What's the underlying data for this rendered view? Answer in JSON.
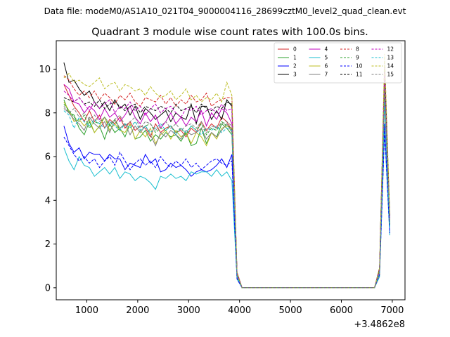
{
  "suptitle": "Data file: modeM0/AS1A10_021T04_9000004116_28699cztM0_level2_quad_clean.evt",
  "chart_data": {
    "type": "line",
    "title": "Quadrant 3 module wise count rates with 100.0s bins.",
    "xlabel": "",
    "ylabel": "",
    "x_offset_label": "+3.4862e8",
    "xlim": [
      400,
      7250
    ],
    "ylim": [
      -0.55,
      11.3
    ],
    "xticks": [
      1000,
      2000,
      3000,
      4000,
      5000,
      6000,
      7000
    ],
    "yticks": [
      0,
      2,
      4,
      6,
      8,
      10
    ],
    "grid": false,
    "legend": {
      "placement": "top-right",
      "columns": 4
    },
    "x": [
      550,
      650,
      750,
      850,
      950,
      1050,
      1150,
      1250,
      1350,
      1450,
      1550,
      1650,
      1750,
      1850,
      1950,
      2050,
      2150,
      2250,
      2350,
      2450,
      2550,
      2650,
      2750,
      2850,
      2950,
      3050,
      3150,
      3250,
      3350,
      3450,
      3550,
      3650,
      3750,
      3850,
      3950,
      4050,
      4150,
      4250,
      4350,
      4450,
      4550,
      4650,
      4750,
      4850,
      4950,
      5050,
      5150,
      5250,
      5350,
      5450,
      5550,
      5650,
      5750,
      5850,
      5950,
      6050,
      6150,
      6250,
      6350,
      6450,
      6550,
      6650,
      6750,
      6850,
      6950
    ],
    "series": [
      {
        "name": "0",
        "color": "#d62728",
        "dash": false,
        "values": [
          9.3,
          8.8,
          8.3,
          8.0,
          7.6,
          8.1,
          7.6,
          7.9,
          7.3,
          7.7,
          7.5,
          7.8,
          7.3,
          7.6,
          7.2,
          7.4,
          7.3,
          6.9,
          7.5,
          7.1,
          7.3,
          7.4,
          7.1,
          7.2,
          6.9,
          7.3,
          7.1,
          7.6,
          7.2,
          7.5,
          7.3,
          7.8,
          7.6,
          7.2,
          0.6,
          0,
          0,
          0,
          0,
          0,
          0,
          0,
          0,
          0,
          0,
          0,
          0,
          0,
          0,
          0,
          0,
          0,
          0,
          0,
          0,
          0,
          0,
          0,
          0,
          0,
          0,
          0,
          0.8,
          9.5,
          3.1
        ]
      },
      {
        "name": "1",
        "color": "#2ca02c",
        "dash": false,
        "values": [
          8.6,
          8.0,
          7.9,
          7.3,
          7.0,
          7.6,
          7.1,
          7.4,
          6.8,
          7.5,
          7.1,
          7.3,
          6.9,
          7.5,
          6.8,
          6.9,
          7.2,
          6.7,
          7.0,
          6.8,
          7.1,
          6.9,
          7.0,
          6.7,
          7.1,
          6.5,
          6.6,
          7.3,
          6.6,
          7.1,
          6.9,
          7.5,
          7.3,
          7.0,
          0.5,
          0,
          0,
          0,
          0,
          0,
          0,
          0,
          0,
          0,
          0,
          0,
          0,
          0,
          0,
          0,
          0,
          0,
          0,
          0,
          0,
          0,
          0,
          0,
          0,
          0,
          0,
          0,
          0.7,
          8.8,
          2.9
        ]
      },
      {
        "name": "2",
        "color": "#0000ff",
        "dash": false,
        "values": [
          7.4,
          6.6,
          6.2,
          6.4,
          5.9,
          6.2,
          6.1,
          6.1,
          5.8,
          6.1,
          5.9,
          5.9,
          5.4,
          5.7,
          5.6,
          5.5,
          6.1,
          5.7,
          5.9,
          5.3,
          5.4,
          5.7,
          5.5,
          5.6,
          5.4,
          5.1,
          5.3,
          5.4,
          5.3,
          5.4,
          5.6,
          5.9,
          5.5,
          6.1,
          0.4,
          0,
          0,
          0,
          0,
          0,
          0,
          0,
          0,
          0,
          0,
          0,
          0,
          0,
          0,
          0,
          0,
          0,
          0,
          0,
          0,
          0,
          0,
          0,
          0,
          0,
          0,
          0,
          0.6,
          7.5,
          2.5
        ]
      },
      {
        "name": "3",
        "color": "#000000",
        "dash": false,
        "values": [
          10.3,
          9.4,
          9.5,
          9.1,
          8.8,
          9.0,
          8.5,
          8.2,
          8.5,
          8.1,
          8.6,
          8.2,
          8.4,
          7.9,
          8.3,
          7.7,
          8.2,
          8.0,
          7.7,
          7.9,
          8.1,
          7.6,
          8.0,
          7.8,
          7.7,
          8.4,
          7.5,
          8.3,
          8.3,
          7.7,
          8.1,
          7.7,
          8.6,
          8.3,
          0.7,
          0,
          0,
          0,
          0,
          0,
          0,
          0,
          0,
          0,
          0,
          0,
          0,
          0,
          0,
          0,
          0,
          0,
          0,
          0,
          0,
          0,
          0,
          0,
          0,
          0,
          0,
          0,
          0.9,
          10.0,
          3.3
        ]
      },
      {
        "name": "4",
        "color": "#c000c0",
        "dash": false,
        "values": [
          9.3,
          9.1,
          8.5,
          8.4,
          8.0,
          8.3,
          8.1,
          7.7,
          8.2,
          7.8,
          8.0,
          7.6,
          7.9,
          8.3,
          7.8,
          7.5,
          8.0,
          7.6,
          7.9,
          7.3,
          7.6,
          8.0,
          7.5,
          7.8,
          7.4,
          7.8,
          7.6,
          8.1,
          7.4,
          8.0,
          7.7,
          8.2,
          8.0,
          7.5,
          0.7,
          0,
          0,
          0,
          0,
          0,
          0,
          0,
          0,
          0,
          0,
          0,
          0,
          0,
          0,
          0,
          0,
          0,
          0,
          0,
          0,
          0,
          0,
          0,
          0,
          0,
          0,
          0,
          0.8,
          9.7,
          3.2
        ]
      },
      {
        "name": "5",
        "color": "#17becf",
        "dash": false,
        "values": [
          6.4,
          5.8,
          5.4,
          6.0,
          5.6,
          5.5,
          5.1,
          5.3,
          5.5,
          5.2,
          5.5,
          5.0,
          5.3,
          5.2,
          4.9,
          5.1,
          5.0,
          4.8,
          4.5,
          5.1,
          5.0,
          5.2,
          5.0,
          5.1,
          4.9,
          5.3,
          5.2,
          5.3,
          5.3,
          5.1,
          5.4,
          5.1,
          5.3,
          4.9,
          0.4,
          0,
          0,
          0,
          0,
          0,
          0,
          0,
          0,
          0,
          0,
          0,
          0,
          0,
          0,
          0,
          0,
          0,
          0,
          0,
          0,
          0,
          0,
          0,
          0,
          0,
          0,
          0,
          0.5,
          7.2,
          2.4
        ]
      },
      {
        "name": "6",
        "color": "#bcbd22",
        "dash": false,
        "values": [
          8.5,
          8.1,
          7.6,
          7.7,
          7.4,
          7.7,
          7.1,
          7.4,
          7.8,
          7.2,
          7.5,
          7.2,
          7.1,
          7.5,
          6.8,
          7.2,
          6.9,
          7.3,
          6.6,
          7.0,
          7.2,
          6.8,
          7.2,
          6.9,
          7.1,
          6.6,
          7.1,
          6.9,
          6.5,
          7.1,
          6.8,
          7.3,
          7.4,
          7.3,
          0.5,
          0,
          0,
          0,
          0,
          0,
          0,
          0,
          0,
          0,
          0,
          0,
          0,
          0,
          0,
          0,
          0,
          0,
          0,
          0,
          0,
          0,
          0,
          0,
          0,
          0,
          0,
          0,
          0.6,
          9.6,
          3.0
        ]
      },
      {
        "name": "7",
        "color": "#7f7f7f",
        "dash": false,
        "values": [
          8.2,
          8.0,
          7.7,
          7.5,
          7.2,
          7.8,
          7.5,
          7.3,
          7.6,
          7.1,
          7.7,
          7.3,
          7.5,
          7.0,
          7.4,
          7.1,
          7.4,
          7.0,
          6.5,
          7.1,
          6.9,
          7.2,
          7.0,
          6.8,
          7.2,
          7.0,
          7.1,
          7.3,
          6.8,
          7.1,
          6.9,
          7.2,
          7.5,
          7.1,
          0.5,
          0,
          0,
          0,
          0,
          0,
          0,
          0,
          0,
          0,
          0,
          0,
          0,
          0,
          0,
          0,
          0,
          0,
          0,
          0,
          0,
          0,
          0,
          0,
          0,
          0,
          0,
          0,
          0.6,
          8.5,
          2.9
        ]
      },
      {
        "name": "8",
        "color": "#d62728",
        "dash": true,
        "values": [
          9.7,
          9.5,
          9.1,
          8.8,
          9.0,
          8.7,
          9.0,
          8.6,
          8.9,
          8.7,
          8.4,
          8.8,
          8.6,
          8.9,
          8.5,
          8.3,
          8.7,
          8.6,
          8.5,
          8.8,
          8.4,
          8.7,
          8.3,
          8.6,
          8.4,
          8.8,
          8.5,
          8.6,
          8.9,
          8.3,
          8.5,
          8.6,
          8.7,
          8.7,
          0.7,
          0,
          0,
          0,
          0,
          0,
          0,
          0,
          0,
          0,
          0,
          0,
          0,
          0,
          0,
          0,
          0,
          0,
          0,
          0,
          0,
          0,
          0,
          0,
          0,
          0,
          0,
          0,
          0.9,
          10.1,
          3.3
        ]
      },
      {
        "name": "9",
        "color": "#2ca02c",
        "dash": true,
        "values": [
          8.4,
          8.1,
          7.8,
          7.6,
          7.9,
          7.3,
          7.6,
          7.5,
          7.8,
          7.4,
          7.7,
          7.2,
          7.5,
          7.3,
          7.6,
          7.2,
          7.4,
          7.5,
          7.1,
          7.3,
          7.2,
          7.4,
          7.1,
          7.3,
          7.0,
          7.4,
          7.2,
          7.5,
          7.0,
          7.3,
          7.2,
          7.6,
          7.4,
          7.3,
          0.5,
          0,
          0,
          0,
          0,
          0,
          0,
          0,
          0,
          0,
          0,
          0,
          0,
          0,
          0,
          0,
          0,
          0,
          0,
          0,
          0,
          0,
          0,
          0,
          0,
          0,
          0,
          0,
          0.7,
          8.9,
          2.9
        ]
      },
      {
        "name": "10",
        "color": "#0000ff",
        "dash": true,
        "values": [
          6.9,
          6.5,
          6.1,
          5.8,
          6.0,
          5.7,
          5.9,
          5.5,
          5.8,
          6.0,
          5.6,
          6.2,
          5.8,
          5.4,
          5.7,
          5.9,
          5.6,
          5.8,
          5.5,
          6.0,
          5.7,
          5.5,
          5.8,
          5.6,
          5.9,
          5.5,
          5.7,
          5.4,
          5.6,
          5.8,
          5.9,
          5.7,
          5.6,
          5.8,
          0.4,
          0,
          0,
          0,
          0,
          0,
          0,
          0,
          0,
          0,
          0,
          0,
          0,
          0,
          0,
          0,
          0,
          0,
          0,
          0,
          0,
          0,
          0,
          0,
          0,
          0,
          0,
          0,
          0.6,
          7.2,
          2.5
        ]
      },
      {
        "name": "11",
        "color": "#000000",
        "dash": true,
        "values": [
          8.7,
          8.6,
          8.5,
          8.7,
          8.4,
          8.5,
          8.3,
          8.6,
          8.2,
          8.4,
          8.5,
          8.3,
          8.1,
          8.3,
          8.4,
          8.0,
          8.3,
          8.2,
          8.1,
          8.3,
          8.2,
          8.0,
          8.4,
          8.1,
          8.2,
          8.3,
          8.0,
          8.4,
          8.2,
          8.1,
          8.3,
          8.2,
          8.5,
          8.4,
          0.6,
          0,
          0,
          0,
          0,
          0,
          0,
          0,
          0,
          0,
          0,
          0,
          0,
          0,
          0,
          0,
          0,
          0,
          0,
          0,
          0,
          0,
          0,
          0,
          0,
          0,
          0,
          0,
          0.8,
          10.4,
          3.2
        ]
      },
      {
        "name": "12",
        "color": "#c000c0",
        "dash": true,
        "values": [
          9.0,
          8.8,
          8.5,
          8.7,
          8.4,
          8.1,
          8.5,
          8.2,
          8.4,
          8.6,
          8.0,
          8.3,
          8.2,
          8.5,
          8.1,
          8.3,
          7.9,
          8.2,
          8.4,
          8.0,
          8.2,
          8.3,
          8.0,
          7.8,
          8.2,
          8.1,
          8.3,
          7.9,
          8.1,
          8.2,
          8.0,
          8.4,
          8.1,
          8.2,
          0.6,
          0,
          0,
          0,
          0,
          0,
          0,
          0,
          0,
          0,
          0,
          0,
          0,
          0,
          0,
          0,
          0,
          0,
          0,
          0,
          0,
          0,
          0,
          0,
          0,
          0,
          0,
          0,
          0.8,
          9.8,
          3.1
        ]
      },
      {
        "name": "13",
        "color": "#17becf",
        "dash": true,
        "values": [
          8.1,
          7.9,
          7.3,
          7.8,
          7.6,
          7.4,
          7.7,
          7.5,
          7.3,
          7.6,
          7.4,
          7.2,
          7.5,
          7.3,
          7.6,
          7.2,
          7.4,
          7.1,
          7.3,
          7.5,
          7.2,
          7.4,
          7.0,
          7.3,
          7.1,
          7.4,
          7.2,
          7.0,
          7.3,
          7.2,
          7.4,
          7.1,
          7.3,
          7.2,
          0.5,
          0,
          0,
          0,
          0,
          0,
          0,
          0,
          0,
          0,
          0,
          0,
          0,
          0,
          0,
          0,
          0,
          0,
          0,
          0,
          0,
          0,
          0,
          0,
          0,
          0,
          0,
          0,
          0.7,
          8.6,
          2.8
        ]
      },
      {
        "name": "14",
        "color": "#bcbd22",
        "dash": true,
        "values": [
          9.6,
          9.8,
          9.4,
          9.5,
          9.3,
          9.2,
          9.4,
          9.6,
          9.1,
          9.3,
          9.4,
          9.0,
          9.3,
          9.2,
          9.0,
          9.1,
          8.8,
          9.2,
          8.9,
          8.7,
          8.8,
          9.0,
          8.6,
          8.8,
          9.1,
          8.6,
          8.8,
          8.5,
          8.7,
          8.6,
          8.9,
          8.5,
          9.4,
          8.8,
          0.7,
          0,
          0,
          0,
          0,
          0,
          0,
          0,
          0,
          0,
          0,
          0,
          0,
          0,
          0,
          0,
          0,
          0,
          0,
          0,
          0,
          0,
          0,
          0,
          0,
          0,
          0,
          0,
          0.9,
          10.7,
          3.4
        ]
      },
      {
        "name": "15",
        "color": "#7f7f7f",
        "dash": true,
        "values": [
          8.3,
          8.0,
          8.2,
          7.8,
          8.0,
          7.7,
          7.9,
          7.6,
          7.8,
          7.5,
          7.7,
          7.9,
          7.4,
          7.6,
          7.8,
          7.3,
          7.6,
          7.5,
          7.2,
          7.4,
          7.6,
          7.3,
          7.5,
          7.2,
          7.4,
          7.5,
          7.3,
          7.6,
          7.1,
          7.4,
          7.3,
          7.5,
          7.6,
          7.4,
          0.6,
          0,
          0,
          0,
          0,
          0,
          0,
          0,
          0,
          0,
          0,
          0,
          0,
          0,
          0,
          0,
          0,
          0,
          0,
          0,
          0,
          0,
          0,
          0,
          0,
          0,
          0,
          0,
          0.7,
          9.2,
          3.0
        ]
      }
    ]
  }
}
